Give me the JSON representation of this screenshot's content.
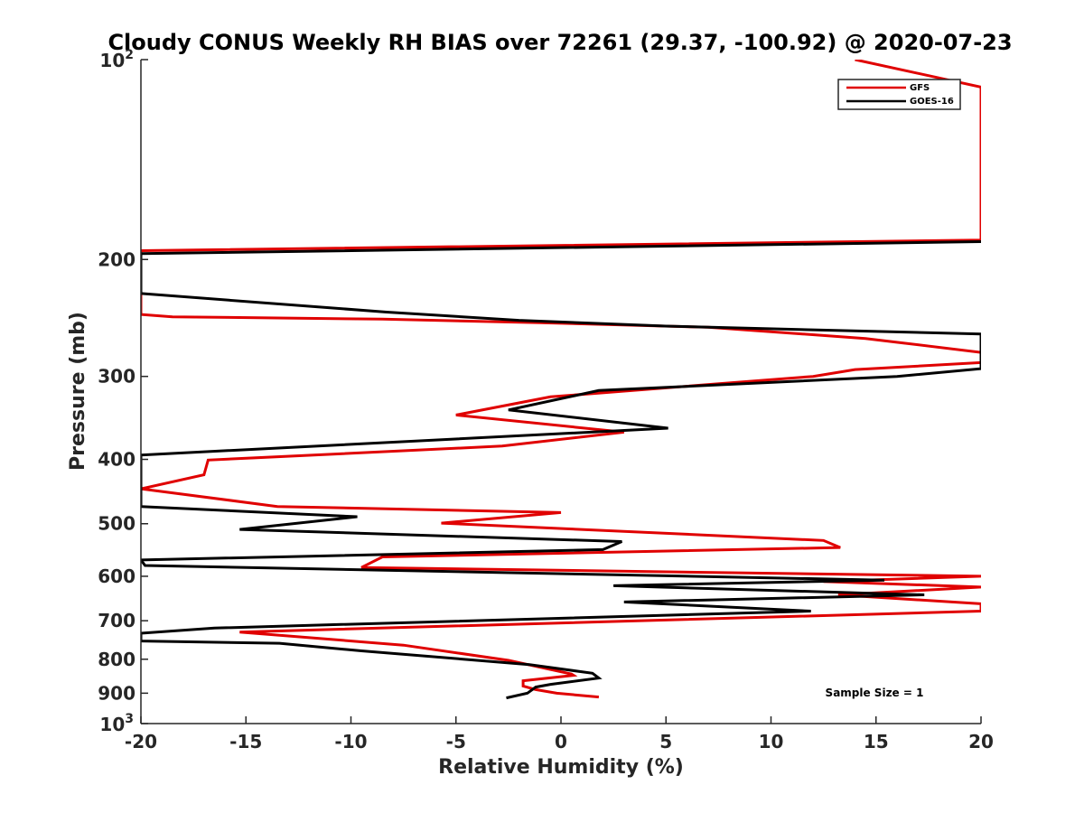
{
  "chart_data": {
    "type": "line",
    "title": "Cloudy CONUS Weekly RH BIAS over 72261 (29.37, -100.92) @ 2020-07-23",
    "xlabel": "Relative Humidity (%)",
    "ylabel": "Pressure (mb)",
    "xlim": [
      -20,
      20
    ],
    "ylim": [
      100,
      1000
    ],
    "y_scale": "log",
    "y_reversed": true,
    "grid": false,
    "legend_position": "top-right",
    "x_ticks": [
      "-20",
      "-15",
      "-10",
      "-5",
      "0",
      "5",
      "10",
      "15",
      "20"
    ],
    "y_ticks": [
      {
        "base": "10",
        "exp": "2",
        "value": 100
      },
      {
        "label": "200",
        "value": 200
      },
      {
        "label": "300",
        "value": 300
      },
      {
        "label": "400",
        "value": 400
      },
      {
        "label": "500",
        "value": 500
      },
      {
        "label": "600",
        "value": 600
      },
      {
        "label": "700",
        "value": 700
      },
      {
        "label": "800",
        "value": 800
      },
      {
        "label": "900",
        "value": 900
      },
      {
        "base": "10",
        "exp": "3",
        "value": 1000
      }
    ],
    "series": [
      {
        "name": "GFS",
        "color": "#e00000",
        "points": [
          [
            14,
            100
          ],
          [
            20,
            110
          ],
          [
            20,
            187
          ],
          [
            -20,
            194
          ],
          [
            -20,
            242
          ],
          [
            -18.5,
            244
          ],
          [
            -8.5,
            246
          ],
          [
            -1,
            249
          ],
          [
            7,
            253
          ],
          [
            14.5,
            263
          ],
          [
            20,
            276
          ],
          [
            20,
            286
          ],
          [
            14,
            293
          ],
          [
            12,
            300
          ],
          [
            -0.5,
            322
          ],
          [
            -5,
            343
          ],
          [
            3,
            364
          ],
          [
            -2.8,
            382
          ],
          [
            -16.8,
            401
          ],
          [
            -17,
            422
          ],
          [
            -20,
            443
          ],
          [
            -13.5,
            471
          ],
          [
            0,
            481
          ],
          [
            -5.7,
            499
          ],
          [
            12.5,
            530
          ],
          [
            13.3,
            543
          ],
          [
            -8.5,
            561
          ],
          [
            -9.5,
            582
          ],
          [
            20,
            600
          ],
          [
            12.5,
            611
          ],
          [
            20,
            623
          ],
          [
            13.2,
            640
          ],
          [
            20,
            660
          ],
          [
            20,
            677
          ],
          [
            -15.3,
            728
          ],
          [
            -7.5,
            762
          ],
          [
            -2.5,
            803
          ],
          [
            0.5,
            842
          ],
          [
            0.6,
            846
          ],
          [
            -1.8,
            862
          ],
          [
            -1.8,
            878
          ],
          [
            -1.2,
            889
          ],
          [
            -0.2,
            900
          ],
          [
            1.8,
            912
          ]
        ]
      },
      {
        "name": "GOES-16",
        "color": "#000000",
        "points": [
          [
            20,
            188
          ],
          [
            -20,
            196
          ],
          [
            -20,
            225
          ],
          [
            -8.3,
            240
          ],
          [
            -2,
            247
          ],
          [
            5,
            252
          ],
          [
            20,
            259
          ],
          [
            20,
            292
          ],
          [
            16,
            300
          ],
          [
            1.8,
            315
          ],
          [
            -2.5,
            337
          ],
          [
            5.1,
            359
          ],
          [
            -20,
            394
          ],
          [
            -20,
            471
          ],
          [
            -9.7,
            488
          ],
          [
            -15.3,
            510
          ],
          [
            2.9,
            532
          ],
          [
            2,
            547
          ],
          [
            -20,
            567
          ],
          [
            -19.8,
            578
          ],
          [
            15.4,
            608
          ],
          [
            2.5,
            620
          ],
          [
            17.3,
            640
          ],
          [
            3,
            656
          ],
          [
            11.9,
            677
          ],
          [
            -16.5,
            718
          ],
          [
            -20,
            731
          ],
          [
            -20,
            751
          ],
          [
            -13.4,
            757
          ],
          [
            -9.5,
            777
          ],
          [
            -1.5,
            815
          ],
          [
            1.5,
            840
          ],
          [
            1.8,
            854
          ],
          [
            -0.5,
            873
          ],
          [
            -1.2,
            881
          ],
          [
            -1.6,
            900
          ],
          [
            -2.6,
            915
          ]
        ]
      }
    ],
    "legend": [
      {
        "label": "GFS",
        "color": "#e00000"
      },
      {
        "label": "GOES-16",
        "color": "#000000"
      }
    ],
    "annotation": "Sample Size = 1"
  }
}
